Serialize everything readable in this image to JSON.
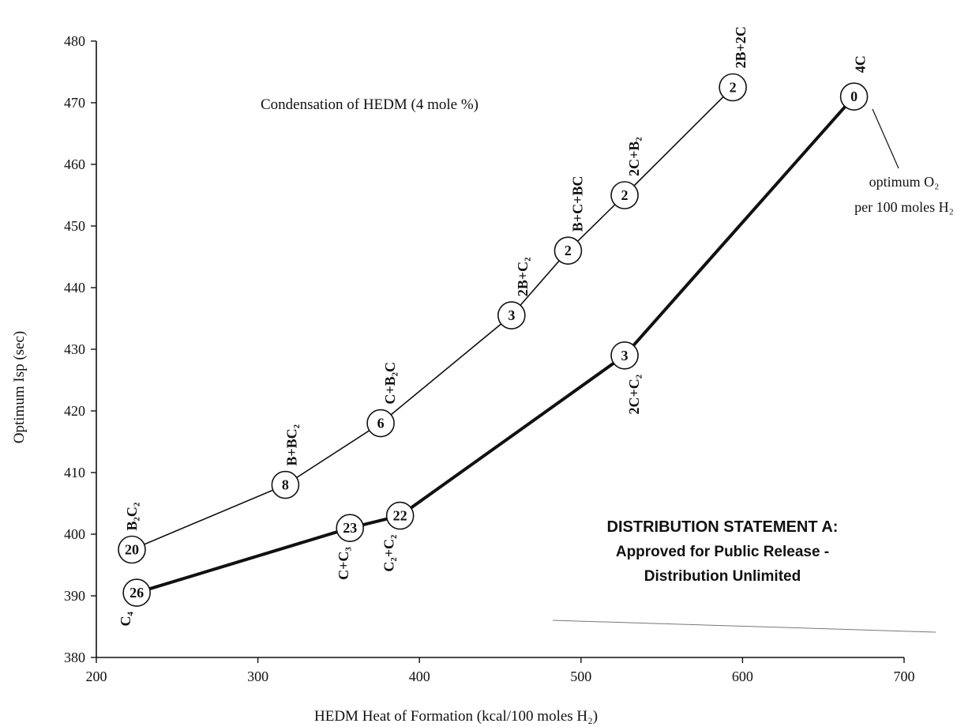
{
  "chart_data": {
    "type": "line",
    "title": "Condensation of HEDM (4 mole %)",
    "xlabel": "HEDM Heat of Formation (kcal/100 moles H₂)",
    "ylabel": "Optimum Isp (sec)",
    "xlim": [
      200,
      700
    ],
    "ylim": [
      380,
      480
    ],
    "x_ticks": [
      "200",
      "300",
      "400",
      "500",
      "600",
      "700"
    ],
    "y_ticks": [
      "380",
      "390",
      "400",
      "410",
      "420",
      "430",
      "440",
      "450",
      "460",
      "470",
      "480"
    ],
    "grid": false,
    "legend": "none",
    "point_value_meaning": "optimum O₂ per 100 moles H₂",
    "series": [
      {
        "style": "thin",
        "points": [
          {
            "x": 222,
            "y": 397.5,
            "label": "B₂C₂",
            "value": "20"
          },
          {
            "x": 317,
            "y": 408,
            "label": "B+BC₂",
            "value": "8"
          },
          {
            "x": 376,
            "y": 418,
            "label": "C+B₂C",
            "value": "6"
          },
          {
            "x": 457,
            "y": 435.5,
            "label": "2B+C₂",
            "value": "3"
          },
          {
            "x": 492,
            "y": 446,
            "label": "B+C+BC",
            "value": "2"
          },
          {
            "x": 527,
            "y": 455,
            "label": "2C+B₂",
            "value": "2"
          },
          {
            "x": 594,
            "y": 472.5,
            "label": "2B+2C",
            "value": "2"
          }
        ]
      },
      {
        "style": "thick",
        "points": [
          {
            "x": 225,
            "y": 390.5,
            "label": "C₄",
            "value": "26"
          },
          {
            "x": 357,
            "y": 401,
            "label": "C+C₃",
            "value": "23"
          },
          {
            "x": 388,
            "y": 403,
            "label": "C₂+C₂",
            "value": "22"
          },
          {
            "x": 527,
            "y": 429,
            "label": "2C+C₂",
            "value": "3"
          },
          {
            "x": 669,
            "y": 471,
            "label": "4C",
            "value": "0"
          }
        ]
      }
    ],
    "annotations": {
      "callout_line1": "optimum O₂",
      "callout_line2": "per 100 moles H₂"
    }
  },
  "statement": {
    "line1": "DISTRIBUTION STATEMENT  A:",
    "line2": "Approved for Public Release -",
    "line3": "Distribution Unlimited"
  }
}
